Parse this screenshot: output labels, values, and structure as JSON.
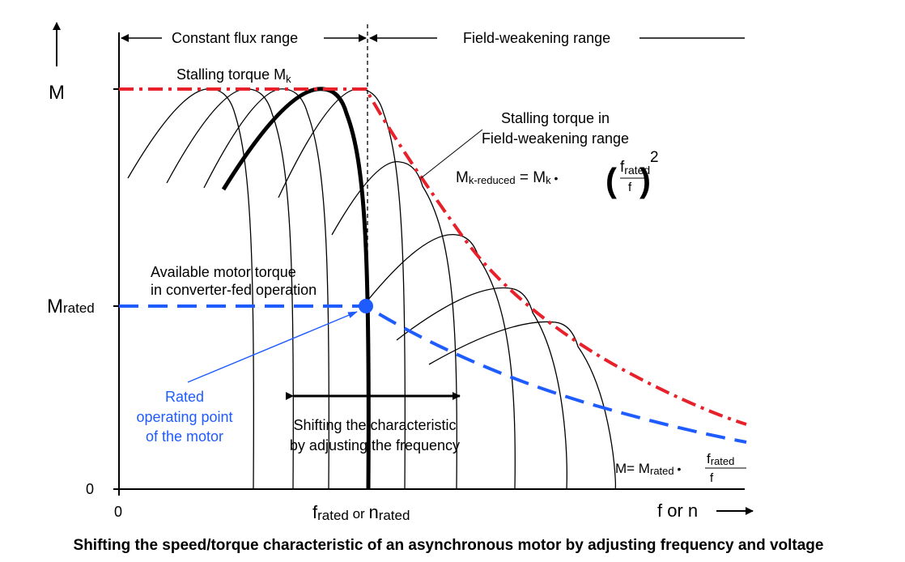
{
  "diagram": {
    "y_axis_label": "M",
    "y_tick_rated": {
      "main": "M",
      "sub": "rated"
    },
    "y_tick_zero": "0",
    "x_tick_zero": "0",
    "x_axis_label": "f or n",
    "x_tick_rated": {
      "f": "f",
      "f_sub": "rated",
      "or": " or ",
      "n": "n",
      "n_sub": "rated"
    },
    "range_constant_flux": "Constant flux range",
    "range_field_weakening": "Field-weakening range",
    "stalling_torque": {
      "text": "Stalling torque M",
      "sub": "k"
    },
    "stalling_torque_fw": [
      "Stalling torque in",
      "Field-weakening range"
    ],
    "formula_k_reduced": {
      "lhs": "M",
      "lhs_sub": "k-reduced",
      "eq": " = M",
      "mk_sub": "k",
      "dot": " • ",
      "frac_num": "f",
      "frac_num_sub": "rated",
      "frac_den": "f",
      "exponent": "2"
    },
    "available_torque": [
      "Available motor torque",
      "in converter-fed operation"
    ],
    "rated_point": [
      "Rated",
      "operating point",
      "of the  motor"
    ],
    "shifting": [
      "Shifting the characteristic",
      "by adjusting the frequency"
    ],
    "formula_m": {
      "lhs": "M= M",
      "lhs_sub": "rated",
      "dot": " • ",
      "frac_num": "f",
      "frac_num_sub": "rated",
      "frac_den": "f"
    },
    "colors": {
      "stall_curve": "#e8202a",
      "rated_curve": "#1f5cff",
      "ink": "#000000"
    }
  },
  "caption": "Shifting the speed/torque characteristic of an asynchronous motor by adjusting frequency and voltage"
}
